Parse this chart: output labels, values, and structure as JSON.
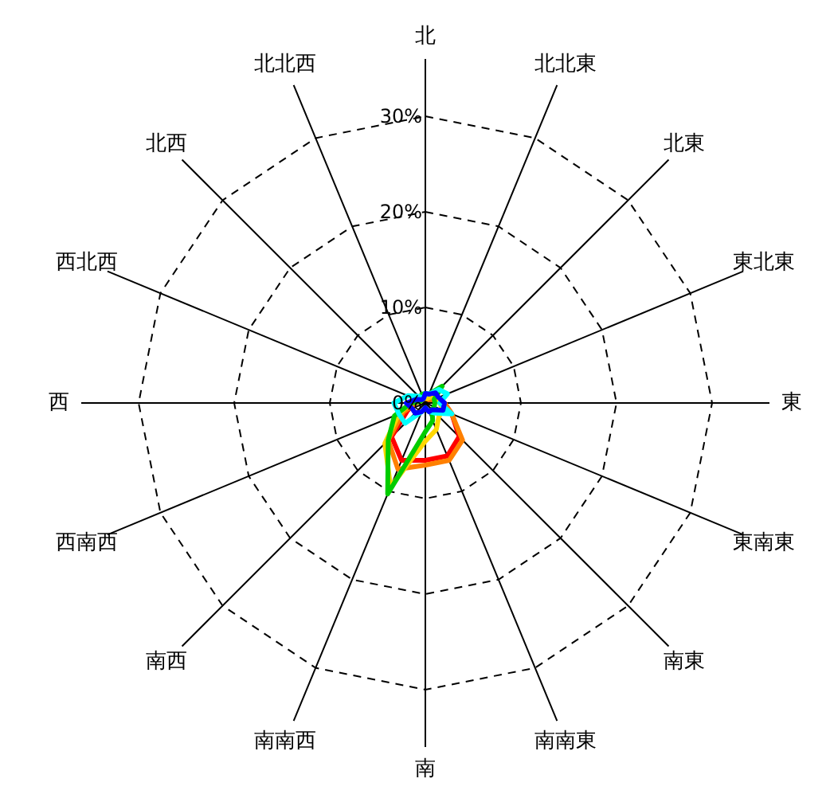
{
  "chart_data": {
    "type": "radar",
    "categories": [
      "北",
      "北北東",
      "北東",
      "東北東",
      "東",
      "東南東",
      "南東",
      "南南東",
      "南",
      "南南西",
      "南西",
      "西南西",
      "西",
      "西北西",
      "北西",
      "北北西"
    ],
    "ylim": [
      0,
      30
    ],
    "yticks": [
      {
        "value": 0,
        "label": "0%"
      },
      {
        "value": 10,
        "label": "10%"
      },
      {
        "value": 20,
        "label": "20%"
      },
      {
        "value": 30,
        "label": "30%"
      }
    ],
    "grid": true,
    "series": [
      {
        "color": "#ff0000",
        "values": [
          0.5,
          0.5,
          0.5,
          1,
          2,
          3,
          5,
          6,
          6,
          6.5,
          5,
          2,
          1,
          0.5,
          0.5,
          0.5
        ]
      },
      {
        "color": "#ff8000",
        "values": [
          0.5,
          0.5,
          0.5,
          1,
          2,
          3,
          5.5,
          6.5,
          6.5,
          7.5,
          5.5,
          2.5,
          1,
          0.5,
          0.5,
          0.5
        ]
      },
      {
        "color": "#ffd700",
        "values": [
          0.5,
          0.5,
          1,
          1,
          1.5,
          2,
          2,
          3,
          4,
          9.5,
          6,
          3,
          1.5,
          0.5,
          0.5,
          0.5
        ]
      },
      {
        "color": "#00cc00",
        "values": [
          1,
          1,
          2.5,
          1,
          1,
          1,
          1,
          2,
          3,
          10.3,
          5.5,
          3.5,
          1.5,
          0.5,
          0.5,
          1
        ]
      },
      {
        "color": "#00ffff",
        "values": [
          1,
          1,
          2,
          2.5,
          1.5,
          3,
          1.5,
          1,
          0.5,
          1,
          3,
          3,
          3.3,
          2,
          1,
          0.5
        ]
      },
      {
        "color": "#0000ff",
        "values": [
          1,
          1,
          1.5,
          1.5,
          2,
          2,
          1,
          1,
          0.5,
          1,
          1.5,
          1.5,
          2,
          1,
          0.5,
          0.5
        ]
      }
    ]
  }
}
